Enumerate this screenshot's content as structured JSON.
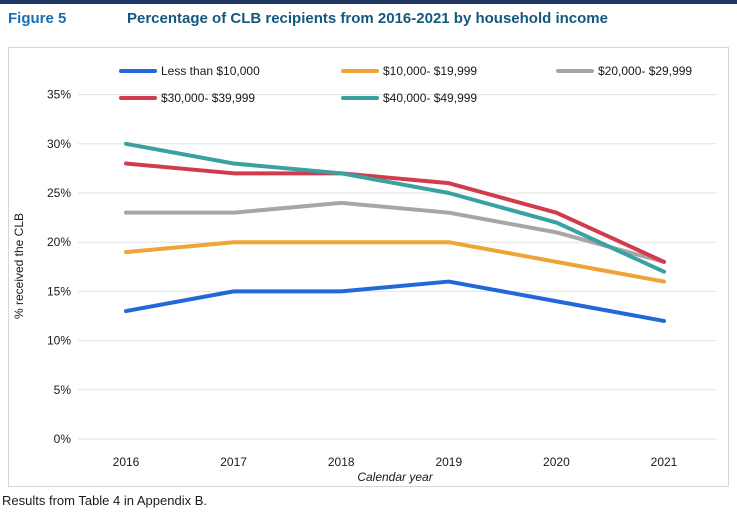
{
  "header": {
    "figure_label": "Figure 5",
    "title": "Percentage of CLB recipients from 2016-2021 by household income"
  },
  "footer": {
    "note": "Results from Table 4 in Appendix B."
  },
  "chart_data": {
    "type": "line",
    "title": "Percentage of CLB recipients from 2016-2021 by household income",
    "xlabel": "Calendar year",
    "ylabel": "% received the CLB",
    "categories": [
      "2016",
      "2017",
      "2018",
      "2019",
      "2020",
      "2021"
    ],
    "ylim": [
      0,
      35
    ],
    "ytick_step": 5,
    "ytick_labels": [
      "0%",
      "5%",
      "10%",
      "15%",
      "20%",
      "25%",
      "30%",
      "35%"
    ],
    "grid": true,
    "legend_position": "top-left-inside",
    "colors": {
      "gridline": "#E3E3E3",
      "axis_text": "#1A1A1A",
      "panel_border": "#D6D6D6",
      "top_bar": "#1F3864",
      "figure_label_blue": "#1B6CB1",
      "title_blue": "#14587E"
    },
    "series": [
      {
        "name": "Less than $10,000",
        "color": "#2368D9",
        "values": [
          13,
          15,
          15,
          16,
          14,
          12
        ]
      },
      {
        "name": "$10,000- $19,999",
        "color": "#EFA437",
        "values": [
          19,
          20,
          20,
          20,
          18,
          16
        ]
      },
      {
        "name": "$20,000- $29,999",
        "color": "#A6A6A6",
        "values": [
          23,
          23,
          24,
          23,
          21,
          18
        ]
      },
      {
        "name": "$30,000- $39,999",
        "color": "#D13B4D",
        "values": [
          28,
          27,
          27,
          26,
          23,
          18
        ]
      },
      {
        "name": "$40,000- $49,999",
        "color": "#3BA0A0",
        "values": [
          30,
          28,
          27,
          25,
          22,
          17
        ]
      }
    ]
  }
}
